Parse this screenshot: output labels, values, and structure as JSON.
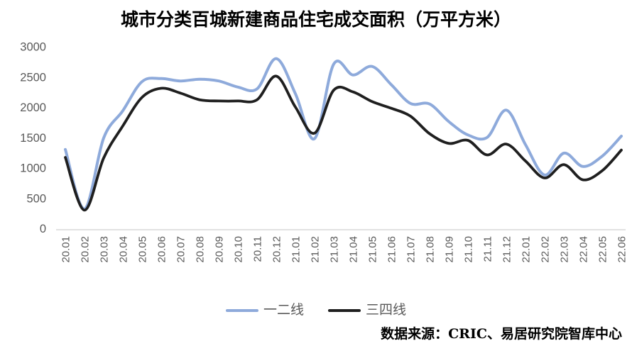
{
  "title": "城市分类百城新建商品住宅成交面积（万平方米）",
  "source_note": "数据来源：CRIC、易居研究院智库中心",
  "colors": {
    "tier12_blue": "#8EAADB",
    "tier34_black": "#1F1F1F",
    "axis_line": "#D9D9D9",
    "tick_label": "#595959",
    "legend_label": "#595959",
    "title_text": "#000000",
    "source_text": "#000000"
  },
  "legend": {
    "items": [
      {
        "label": "一二线",
        "color": "#8EAADB"
      },
      {
        "label": "三四线",
        "color": "#1F1F1F"
      }
    ]
  },
  "chart_data": {
    "type": "line",
    "smoothed": true,
    "grid": false,
    "legend_position": "bottom",
    "title": "城市分类百城新建商品住宅成交面积（万平方米）",
    "ylabel": "",
    "xlabel": "",
    "ylim": [
      0,
      3000
    ],
    "yticks": [
      0,
      500,
      1000,
      1500,
      2000,
      2500,
      3000
    ],
    "categories": [
      "20.01",
      "20.02",
      "20.03",
      "20.04",
      "20.05",
      "20.06",
      "20.07",
      "20.08",
      "20.09",
      "20.10",
      "20.11",
      "20.12",
      "21.01",
      "21.02",
      "21.03",
      "21.04",
      "21.05",
      "21.06",
      "21.07",
      "21.08",
      "21.09",
      "21.10",
      "21.11",
      "21.12",
      "22.01",
      "22.02",
      "22.03",
      "22.04",
      "22.05",
      "22.06"
    ],
    "series": [
      {
        "name": "一二线",
        "color": "#8EAADB",
        "values": [
          1300,
          320,
          1490,
          1940,
          2420,
          2470,
          2430,
          2460,
          2430,
          2330,
          2300,
          2800,
          2220,
          1480,
          2710,
          2530,
          2670,
          2370,
          2060,
          2050,
          1760,
          1540,
          1500,
          1950,
          1380,
          880,
          1240,
          1020,
          1190,
          1520
        ]
      },
      {
        "name": "三四线",
        "color": "#1F1F1F",
        "values": [
          1170,
          300,
          1160,
          1690,
          2160,
          2310,
          2230,
          2120,
          2100,
          2100,
          2120,
          2510,
          2000,
          1570,
          2280,
          2250,
          2090,
          1980,
          1850,
          1560,
          1400,
          1450,
          1210,
          1390,
          1110,
          830,
          1050,
          800,
          950,
          1290
        ]
      }
    ]
  }
}
